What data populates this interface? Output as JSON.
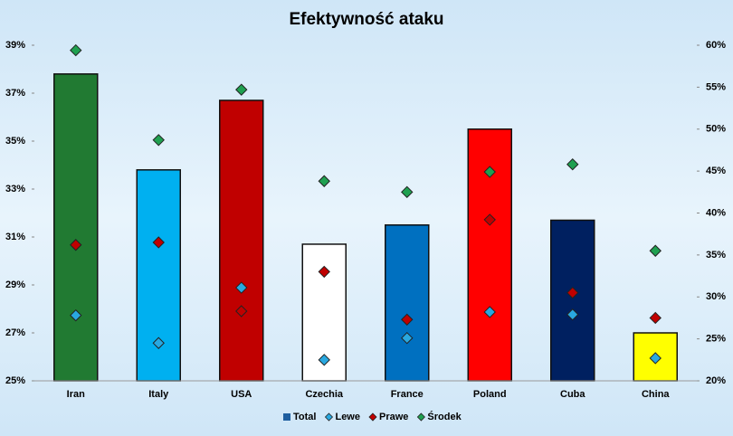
{
  "chart_data": {
    "type": "bar_diamond",
    "title": "Efektywność ataku",
    "categories": [
      "Iran",
      "Italy",
      "USA",
      "Czechia",
      "France",
      "Poland",
      "Cuba",
      "China"
    ],
    "ylim": [
      25,
      39
    ],
    "yticks": [
      {
        "value": 25,
        "label": "25%"
      },
      {
        "value": 27,
        "label": "27%"
      },
      {
        "value": 29,
        "label": "29%"
      },
      {
        "value": 31,
        "label": "31%"
      },
      {
        "value": 33,
        "label": "33%"
      },
      {
        "value": 35,
        "label": "35%"
      },
      {
        "value": 37,
        "label": "37%"
      },
      {
        "value": 39,
        "label": "39%"
      }
    ],
    "y2lim": [
      20,
      60
    ],
    "y2ticks": [
      {
        "value": 20,
        "label": "20%"
      },
      {
        "value": 25,
        "label": "25%"
      },
      {
        "value": 30,
        "label": "30%"
      },
      {
        "value": 35,
        "label": "35%"
      },
      {
        "value": 40,
        "label": "40%"
      },
      {
        "value": 45,
        "label": "45%"
      },
      {
        "value": 50,
        "label": "50%"
      },
      {
        "value": 55,
        "label": "55%"
      },
      {
        "value": 60,
        "label": "60%"
      }
    ],
    "series": [
      {
        "name": "Total",
        "color": "#1f5fa0",
        "colors": [
          "#217a32",
          "#00b0f0",
          "#c00000",
          "#ffffff",
          "#0070c0",
          "#ff0000",
          "#002060",
          "#ffff00"
        ],
        "values": [
          37.8,
          33.8,
          36.7,
          30.7,
          31.5,
          35.5,
          31.7,
          27.0
        ]
      },
      {
        "name": "Lewe",
        "color": "#29a8e0",
        "axis": "y2",
        "values": [
          27.8,
          24.5,
          31.1,
          22.5,
          25.1,
          28.2,
          27.9,
          22.7
        ]
      },
      {
        "name": "Prawe",
        "color": "#c00000",
        "axis": "y2",
        "values": [
          36.2,
          36.5,
          28.3,
          33.0,
          27.3,
          39.2,
          30.5,
          27.5
        ]
      },
      {
        "name": "Środek",
        "color": "#1fa050",
        "axis": "y2",
        "values": [
          59.4,
          48.7,
          54.7,
          43.8,
          42.5,
          44.9,
          45.8,
          35.5
        ]
      }
    ]
  }
}
